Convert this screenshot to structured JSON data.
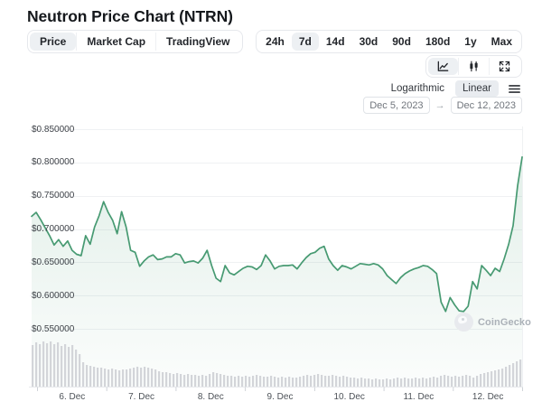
{
  "header": {
    "title": "Neutron Price Chart (NTRN)"
  },
  "tabs": [
    {
      "label": "Price",
      "selected": true
    },
    {
      "label": "Market Cap",
      "selected": false
    },
    {
      "label": "TradingView",
      "selected": false
    }
  ],
  "ranges": [
    {
      "label": "24h",
      "selected": false
    },
    {
      "label": "7d",
      "selected": true
    },
    {
      "label": "14d",
      "selected": false
    },
    {
      "label": "30d",
      "selected": false
    },
    {
      "label": "90d",
      "selected": false
    },
    {
      "label": "180d",
      "selected": false
    },
    {
      "label": "1y",
      "selected": false
    },
    {
      "label": "Max",
      "selected": false
    }
  ],
  "chart_style_buttons": [
    {
      "name": "line-chart",
      "selected": true
    },
    {
      "name": "candlestick-chart",
      "selected": false
    },
    {
      "name": "fullscreen",
      "selected": false
    }
  ],
  "scale_options": [
    {
      "label": "Logarithmic",
      "selected": false
    },
    {
      "label": "Linear",
      "selected": true
    }
  ],
  "toolbar": {
    "date_from": "Dec 5, 2023",
    "date_to": "Dec 12, 2023",
    "arrow": "→"
  },
  "watermark": {
    "label": "CoinGecko"
  },
  "colors": {
    "line": "#479a72",
    "fill_top": "rgba(71,154,114,0.16)",
    "fill_bottom": "rgba(71,154,114,0.02)",
    "volume": "#d3d5d9",
    "grid": "#eff1f3",
    "axis": "#e7e9ec",
    "tick": "#cfd3d8",
    "selected_bg": "#edf0f3"
  },
  "chart_data": {
    "type": "line",
    "title": "Neutron Price Chart (NTRN)",
    "unit": "USD",
    "grid": true,
    "legend": false,
    "date_from": "Dec 5, 2023",
    "date_to": "Dec 12, 2023",
    "y_axis": {
      "tick_labels": [
        "$0.850000",
        "$0.800000",
        "$0.750000",
        "$0.700000",
        "$0.650000",
        "$0.600000",
        "$0.550000"
      ],
      "tick_values": [
        0.85,
        0.8,
        0.75,
        0.7,
        0.65,
        0.6,
        0.55
      ],
      "ylim": [
        0.55,
        0.85
      ]
    },
    "x_axis": {
      "tick_labels": [
        "6. Dec",
        "7. Dec",
        "8. Dec",
        "9. Dec",
        "10. Dec",
        "11. Dec",
        "12. Dec"
      ]
    },
    "series": [
      {
        "name": "NTRN price (USD)",
        "type": "line",
        "sampling": "evenly spaced Dec 5 → Dec 12",
        "values": [
          0.719,
          0.725,
          0.714,
          0.702,
          0.69,
          0.676,
          0.684,
          0.674,
          0.682,
          0.668,
          0.662,
          0.66,
          0.69,
          0.677,
          0.703,
          0.72,
          0.741,
          0.725,
          0.713,
          0.693,
          0.726,
          0.703,
          0.668,
          0.665,
          0.644,
          0.652,
          0.658,
          0.661,
          0.654,
          0.655,
          0.658,
          0.658,
          0.663,
          0.661,
          0.649,
          0.651,
          0.652,
          0.649,
          0.656,
          0.668,
          0.645,
          0.626,
          0.621,
          0.645,
          0.634,
          0.631,
          0.636,
          0.641,
          0.644,
          0.643,
          0.639,
          0.645,
          0.661,
          0.652,
          0.64,
          0.644,
          0.645,
          0.645,
          0.646,
          0.64,
          0.649,
          0.657,
          0.663,
          0.665,
          0.671,
          0.674,
          0.655,
          0.645,
          0.638,
          0.645,
          0.643,
          0.64,
          0.644,
          0.648,
          0.647,
          0.646,
          0.648,
          0.646,
          0.64,
          0.63,
          0.624,
          0.618,
          0.627,
          0.633,
          0.637,
          0.64,
          0.642,
          0.645,
          0.644,
          0.639,
          0.633,
          0.59,
          0.576,
          0.597,
          0.586,
          0.577,
          0.576,
          0.584,
          0.621,
          0.61,
          0.645,
          0.638,
          0.63,
          0.641,
          0.636,
          0.655,
          0.677,
          0.705,
          0.765,
          0.808
        ]
      }
    ],
    "volume": {
      "name": "Volume",
      "type": "bar",
      "values_relative": [
        0.92,
        0.98,
        0.94,
        1.0,
        0.96,
        1.0,
        0.94,
        0.98,
        0.9,
        0.94,
        0.88,
        0.92,
        0.82,
        0.72,
        0.54,
        0.48,
        0.46,
        0.44,
        0.42,
        0.42,
        0.4,
        0.38,
        0.4,
        0.38,
        0.36,
        0.38,
        0.38,
        0.4,
        0.42,
        0.44,
        0.42,
        0.44,
        0.42,
        0.4,
        0.38,
        0.34,
        0.32,
        0.32,
        0.3,
        0.28,
        0.3,
        0.28,
        0.26,
        0.28,
        0.26,
        0.26,
        0.24,
        0.26,
        0.24,
        0.28,
        0.32,
        0.3,
        0.28,
        0.26,
        0.24,
        0.24,
        0.22,
        0.24,
        0.22,
        0.24,
        0.22,
        0.24,
        0.26,
        0.24,
        0.22,
        0.22,
        0.24,
        0.22,
        0.2,
        0.22,
        0.2,
        0.22,
        0.2,
        0.2,
        0.22,
        0.24,
        0.26,
        0.24,
        0.26,
        0.28,
        0.26,
        0.24,
        0.24,
        0.26,
        0.24,
        0.22,
        0.24,
        0.22,
        0.2,
        0.2,
        0.18,
        0.2,
        0.18,
        0.18,
        0.16,
        0.18,
        0.16,
        0.16,
        0.18,
        0.16,
        0.18,
        0.2,
        0.18,
        0.2,
        0.18,
        0.18,
        0.2,
        0.18,
        0.2,
        0.18,
        0.2,
        0.22,
        0.2,
        0.24,
        0.26,
        0.24,
        0.22,
        0.24,
        0.22,
        0.24,
        0.26,
        0.24,
        0.2,
        0.24,
        0.28,
        0.3,
        0.32,
        0.34,
        0.36,
        0.38,
        0.4,
        0.44,
        0.48,
        0.52,
        0.56,
        0.6
      ]
    }
  }
}
